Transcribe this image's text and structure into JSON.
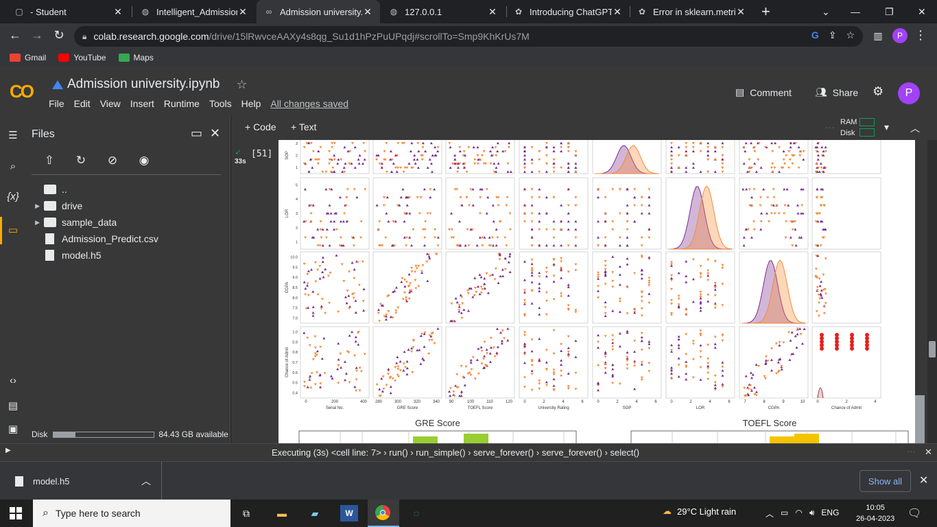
{
  "browser": {
    "tabs": [
      {
        "title": "- Student",
        "icon": "vscode-icon"
      },
      {
        "title": "Intelligent_Admissions",
        "icon": "globe-icon"
      },
      {
        "title": "Admission university.ip",
        "icon": "colab-icon",
        "active": true
      },
      {
        "title": "127.0.0.1",
        "icon": "globe-icon"
      },
      {
        "title": "Introducing ChatGPT",
        "icon": "openai-icon"
      },
      {
        "title": "Error in sklearn.metric",
        "icon": "openai-icon"
      }
    ],
    "url_host": "colab.research.google.com",
    "url_path": "/drive/15lRwvceAAXy4s8qg_Su1d1hPzPuUPqdj#scrollTo=Smp9KhKrUs7M",
    "profile_initial": "P",
    "bookmarks": [
      {
        "label": "Gmail",
        "color": "#ea4335"
      },
      {
        "label": "YouTube",
        "color": "#ff0000"
      },
      {
        "label": "Maps",
        "color": "#34a853"
      }
    ]
  },
  "colab": {
    "logo": "CO",
    "notebook_title": "Admission university.ipynb",
    "menu": [
      "File",
      "Edit",
      "View",
      "Insert",
      "Runtime",
      "Tools",
      "Help"
    ],
    "save_status": "All changes saved",
    "comment_label": "Comment",
    "share_label": "Share",
    "profile_initial": "P",
    "add_code": "+ Code",
    "add_text": "+ Text",
    "ram_label": "RAM",
    "disk_label": "Disk",
    "cell_time": "33s",
    "cell_number": "[51]"
  },
  "files_panel": {
    "title": "Files",
    "items": [
      {
        "name": "..",
        "type": "up"
      },
      {
        "name": "drive",
        "type": "folder"
      },
      {
        "name": "sample_data",
        "type": "folder"
      },
      {
        "name": "Admission_Predict.csv",
        "type": "file"
      },
      {
        "name": "model.h5",
        "type": "file"
      }
    ],
    "disk_label": "Disk",
    "disk_used_fraction": 0.22,
    "disk_available": "84.43 GB available"
  },
  "plot": {
    "row_labels": [
      "SOP",
      "LOR",
      "CGPA",
      "Chance of Admit"
    ],
    "col_labels": [
      "Serial No.",
      "GRE Score",
      "TOEFL Score",
      "University Rating",
      "SOP",
      "LOR",
      "CGPA",
      "Chance of Admit"
    ],
    "col_ticks": [
      [
        "0",
        "200",
        "400"
      ],
      [
        "280",
        "300",
        "320",
        "340"
      ],
      [
        "90",
        "100",
        "110",
        "120"
      ],
      [
        "0",
        "2",
        "4",
        "6"
      ],
      [
        "0",
        "2",
        "4",
        "6"
      ],
      [
        "0",
        "2",
        "4",
        "6"
      ],
      [
        "7",
        "8",
        "9",
        "10"
      ],
      [
        "0",
        "2",
        "4"
      ]
    ],
    "row_ticks": [
      [
        "1",
        "2",
        "3"
      ],
      [
        "1",
        "2",
        "3",
        "4",
        "5"
      ],
      [
        "7.0",
        "7.5",
        "8.0",
        "8.5",
        "9.0",
        "9.5",
        "10.0"
      ],
      [
        "0.4",
        "0.5",
        "0.6",
        "0.7",
        "0.8",
        "0.9",
        "1.0"
      ]
    ],
    "hist_titles": [
      "GRE Score",
      "TOEFL Score"
    ],
    "colors": {
      "purple": "#7b2d8e",
      "orange": "#f58b3a",
      "red": "#e8201a",
      "green": "#9acd32",
      "yellow": "#f5c400"
    }
  },
  "status": {
    "executing": "Executing (3s)",
    "trace": [
      "<cell line: 7>",
      "run()",
      "run_simple()",
      "serve_forever()",
      "serve_forever()",
      "select()"
    ]
  },
  "downloads": {
    "file": "model.h5",
    "show_all": "Show all"
  },
  "taskbar": {
    "search_placeholder": "Type here to search",
    "weather": "29°C  Light rain",
    "language": "ENG",
    "time": "10:05",
    "date": "26-04-2023"
  }
}
